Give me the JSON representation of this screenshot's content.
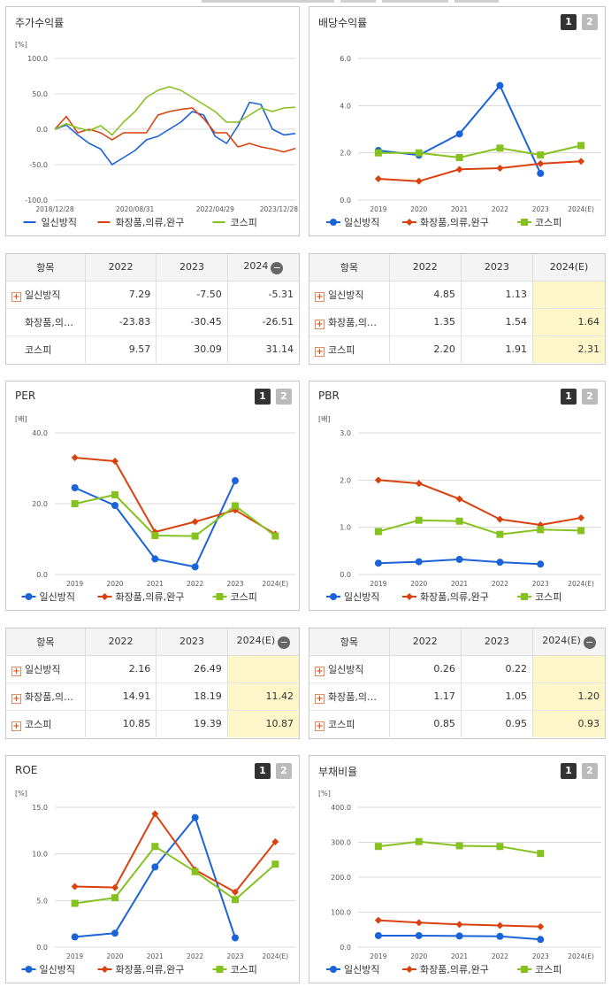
{
  "colors": {
    "series1": "#1b63d8",
    "series2": "#d9420f",
    "series3": "#86c21f",
    "grid": "#d8d8d8"
  },
  "panels": [
    {
      "key": "p0",
      "title": "주가수익률",
      "buttons": []
    },
    {
      "key": "p1",
      "title": "배당수익률",
      "buttons": [
        "1",
        "2"
      ]
    },
    {
      "key": "p2",
      "title": "PER",
      "buttons": [
        "1",
        "2"
      ]
    },
    {
      "key": "p3",
      "title": "PBR",
      "buttons": [
        "1",
        "2"
      ]
    },
    {
      "key": "p4",
      "title": "ROE",
      "buttons": [
        "1",
        "2"
      ]
    },
    {
      "key": "p5",
      "title": "부채비율",
      "buttons": [
        "1",
        "2"
      ]
    }
  ],
  "tables": [
    {
      "header": [
        "항목",
        "2022",
        "2023",
        "2024"
      ],
      "minus": true,
      "rows": [
        {
          "label": "일신방직",
          "plus": true,
          "values": [
            "7.29",
            "-7.50",
            "-5.31"
          ],
          "est": false
        },
        {
          "label": "화장품,의…",
          "plus": false,
          "values": [
            "-23.83",
            "-30.45",
            "-26.51"
          ],
          "est": false
        },
        {
          "label": "코스피",
          "plus": false,
          "values": [
            "9.57",
            "30.09",
            "31.14"
          ],
          "est": false
        }
      ]
    },
    {
      "header": [
        "항목",
        "2022",
        "2023",
        "2024(E)"
      ],
      "minus": false,
      "rows": [
        {
          "label": "일신방직",
          "plus": true,
          "values": [
            "4.85",
            "1.13",
            ""
          ],
          "est": true
        },
        {
          "label": "화장품,의…",
          "plus": true,
          "values": [
            "1.35",
            "1.54",
            "1.64"
          ],
          "est": true
        },
        {
          "label": "코스피",
          "plus": true,
          "values": [
            "2.20",
            "1.91",
            "2.31"
          ],
          "est": true
        }
      ]
    },
    {
      "header": [
        "항목",
        "2022",
        "2023",
        "2024(E)"
      ],
      "minus": true,
      "rows": [
        {
          "label": "일신방직",
          "plus": true,
          "values": [
            "2.16",
            "26.49",
            ""
          ],
          "est": true
        },
        {
          "label": "화장품,의…",
          "plus": true,
          "values": [
            "14.91",
            "18.19",
            "11.42"
          ],
          "est": true
        },
        {
          "label": "코스피",
          "plus": true,
          "values": [
            "10.85",
            "19.39",
            "10.87"
          ],
          "est": true
        }
      ]
    },
    {
      "header": [
        "항목",
        "2022",
        "2023",
        "2024(E)"
      ],
      "minus": true,
      "rows": [
        {
          "label": "일신방직",
          "plus": true,
          "values": [
            "0.26",
            "0.22",
            ""
          ],
          "est": true
        },
        {
          "label": "화장품,의…",
          "plus": true,
          "values": [
            "1.17",
            "1.05",
            "1.20"
          ],
          "est": true
        },
        {
          "label": "코스피",
          "plus": true,
          "values": [
            "0.85",
            "0.95",
            "0.93"
          ],
          "est": true
        }
      ]
    }
  ],
  "chart_data": [
    {
      "type": "line",
      "title": "주가수익률",
      "unit": "[%]",
      "ylim": [
        -100,
        100
      ],
      "yticks": [
        "100.0",
        "50.0",
        "0.0",
        "-50.0",
        "-100.0"
      ],
      "xticks": [
        "2018/12/28",
        "2020/08/31",
        "2022/04/29",
        "2023/12/28"
      ],
      "x": [
        "2018/12/28",
        "2019/03",
        "2019/06",
        "2019/09",
        "2019/12",
        "2020/03",
        "2020/06",
        "2020/08/31",
        "2020/11",
        "2021/02",
        "2021/05",
        "2021/08",
        "2021/11",
        "2022/02",
        "2022/04/29",
        "2022/07",
        "2022/10",
        "2023/01",
        "2023/04",
        "2023/07",
        "2023/10",
        "2023/12/28"
      ],
      "series": [
        {
          "name": "일신방직",
          "marker": "none",
          "values": [
            0,
            6,
            -8,
            -20,
            -28,
            -50,
            -40,
            -30,
            -15,
            -10,
            0,
            10,
            25,
            20,
            -10,
            -20,
            5,
            38,
            35,
            0,
            -8,
            -6
          ]
        },
        {
          "name": "화장품,의류,완구",
          "marker": "none",
          "values": [
            0,
            18,
            -5,
            0,
            -5,
            -15,
            -5,
            -5,
            -5,
            20,
            25,
            28,
            30,
            15,
            -5,
            -5,
            -25,
            -20,
            -25,
            -28,
            -32,
            -27
          ]
        },
        {
          "name": "코스피",
          "marker": "none",
          "values": [
            0,
            8,
            2,
            -2,
            5,
            -8,
            10,
            25,
            45,
            55,
            60,
            55,
            45,
            35,
            25,
            10,
            10,
            20,
            30,
            25,
            30,
            31
          ]
        }
      ]
    },
    {
      "type": "line",
      "title": "배당수익률",
      "unit": "",
      "ylim": [
        0,
        6
      ],
      "yticks": [
        "6.0",
        "4.0",
        "2.0",
        "0.0"
      ],
      "x": [
        "2019",
        "2020",
        "2021",
        "2022",
        "2023",
        "2024(E)"
      ],
      "series": [
        {
          "name": "일신방직",
          "marker": "circle",
          "values": [
            2.1,
            1.9,
            2.8,
            4.85,
            1.13,
            null
          ]
        },
        {
          "name": "화장품,의류,완구",
          "marker": "diamond",
          "values": [
            0.9,
            0.8,
            1.3,
            1.35,
            1.54,
            1.64
          ]
        },
        {
          "name": "코스피",
          "marker": "square",
          "values": [
            2.0,
            2.0,
            1.8,
            2.2,
            1.91,
            2.31
          ]
        }
      ]
    },
    {
      "type": "line",
      "title": "PER",
      "unit": "[배]",
      "ylim": [
        0,
        40
      ],
      "yticks": [
        "40.0",
        "20.0",
        "0.0"
      ],
      "x": [
        "2019",
        "2020",
        "2021",
        "2022",
        "2023",
        "2024(E)"
      ],
      "series": [
        {
          "name": "일신방직",
          "marker": "circle",
          "values": [
            24.5,
            19.5,
            4.4,
            2.16,
            26.49,
            null
          ]
        },
        {
          "name": "화장품,의류,완구",
          "marker": "diamond",
          "values": [
            33.0,
            32.0,
            12.0,
            14.91,
            18.19,
            11.42
          ]
        },
        {
          "name": "코스피",
          "marker": "square",
          "values": [
            20.0,
            22.5,
            11.0,
            10.85,
            19.39,
            10.87
          ]
        }
      ]
    },
    {
      "type": "line",
      "title": "PBR",
      "unit": "[배]",
      "ylim": [
        0,
        3
      ],
      "yticks": [
        "3.0",
        "2.0",
        "1.0",
        "0.0"
      ],
      "x": [
        "2019",
        "2020",
        "2021",
        "2022",
        "2023",
        "2024(E)"
      ],
      "series": [
        {
          "name": "일신방직",
          "marker": "circle",
          "values": [
            0.24,
            0.27,
            0.32,
            0.26,
            0.22,
            null
          ]
        },
        {
          "name": "화장품,의류,완구",
          "marker": "diamond",
          "values": [
            2.0,
            1.93,
            1.6,
            1.17,
            1.05,
            1.2
          ]
        },
        {
          "name": "코스피",
          "marker": "square",
          "values": [
            0.91,
            1.15,
            1.13,
            0.85,
            0.95,
            0.93
          ]
        }
      ]
    },
    {
      "type": "line",
      "title": "ROE",
      "unit": "[%]",
      "ylim": [
        0,
        15
      ],
      "yticks": [
        "15.0",
        "10.0",
        "5.0",
        "0.0"
      ],
      "x": [
        "2019",
        "2020",
        "2021",
        "2022",
        "2023",
        "2024(E)"
      ],
      "series": [
        {
          "name": "일신방직",
          "marker": "circle",
          "values": [
            1.1,
            1.5,
            8.6,
            13.9,
            1.0,
            null
          ]
        },
        {
          "name": "화장품,의류,완구",
          "marker": "diamond",
          "values": [
            6.5,
            6.4,
            14.3,
            8.3,
            5.9,
            11.3
          ]
        },
        {
          "name": "코스피",
          "marker": "square",
          "values": [
            4.7,
            5.3,
            10.8,
            8.1,
            5.1,
            8.9
          ]
        }
      ]
    },
    {
      "type": "line",
      "title": "부채비율",
      "unit": "[%]",
      "ylim": [
        0,
        400
      ],
      "yticks": [
        "400.0",
        "300.0",
        "200.0",
        "100.0",
        "0.0"
      ],
      "x": [
        "2019",
        "2020",
        "2021",
        "2022",
        "2023",
        "2024(E)"
      ],
      "series": [
        {
          "name": "일신방직",
          "marker": "circle",
          "values": [
            33,
            33,
            32,
            31,
            22,
            null
          ]
        },
        {
          "name": "화장품,의류,완구",
          "marker": "diamond",
          "values": [
            77,
            70,
            65,
            62,
            59,
            null
          ]
        },
        {
          "name": "코스피",
          "marker": "square",
          "values": [
            288,
            302,
            290,
            288,
            268,
            null
          ]
        }
      ]
    }
  ]
}
